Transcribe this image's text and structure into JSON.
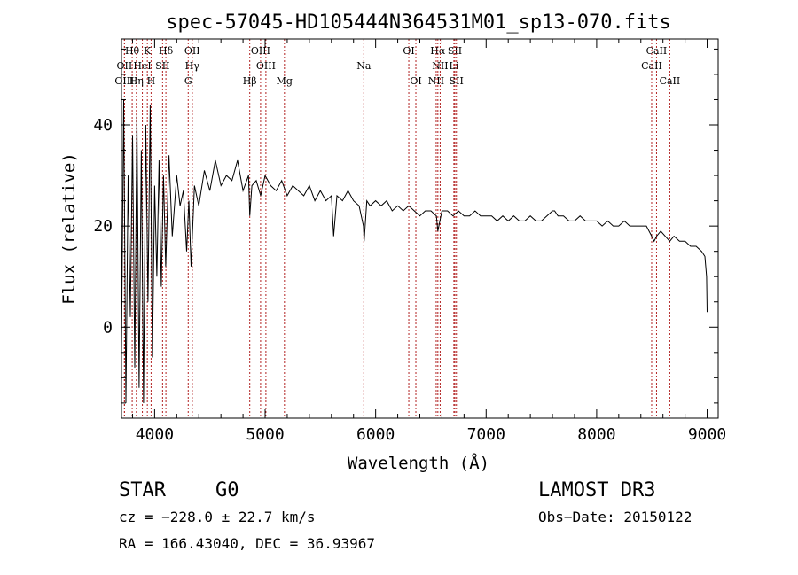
{
  "chart_data": {
    "type": "line",
    "title": "spec-57045-HD105444N364531M01_sp13-070.fits",
    "xlabel": "Wavelength (Å)",
    "ylabel": "Flux (relative)",
    "xlim": [
      3700,
      9100
    ],
    "ylim": [
      -18,
      57
    ],
    "x_ticks": [
      4000,
      5000,
      6000,
      7000,
      8000,
      9000
    ],
    "y_ticks": [
      0,
      20,
      40
    ],
    "grid": false,
    "line_color": "#000000",
    "marker_color": "#b22222",
    "series": [
      {
        "name": "flux",
        "x": [
          3700,
          3720,
          3740,
          3760,
          3780,
          3800,
          3820,
          3840,
          3860,
          3880,
          3900,
          3920,
          3940,
          3960,
          3980,
          4000,
          4020,
          4040,
          4060,
          4080,
          4100,
          4130,
          4160,
          4200,
          4230,
          4260,
          4290,
          4310,
          4330,
          4360,
          4400,
          4450,
          4500,
          4550,
          4600,
          4650,
          4700,
          4750,
          4800,
          4850,
          4861,
          4880,
          4920,
          4960,
          5000,
          5050,
          5100,
          5150,
          5200,
          5250,
          5300,
          5350,
          5400,
          5450,
          5500,
          5550,
          5600,
          5620,
          5650,
          5700,
          5750,
          5800,
          5850,
          5890,
          5896,
          5920,
          5950,
          6000,
          6050,
          6100,
          6150,
          6200,
          6250,
          6300,
          6350,
          6400,
          6450,
          6500,
          6550,
          6563,
          6600,
          6650,
          6700,
          6750,
          6800,
          6850,
          6900,
          6950,
          7000,
          7050,
          7100,
          7150,
          7200,
          7250,
          7300,
          7350,
          7400,
          7450,
          7500,
          7550,
          7600,
          7620,
          7650,
          7700,
          7750,
          7800,
          7850,
          7900,
          7950,
          8000,
          8050,
          8100,
          8150,
          8200,
          8250,
          8300,
          8350,
          8400,
          8450,
          8498,
          8520,
          8542,
          8580,
          8620,
          8662,
          8700,
          8750,
          8800,
          8850,
          8900,
          8950,
          8980,
          8995,
          9000
        ],
        "values": [
          -5,
          45,
          -15,
          30,
          2,
          38,
          -8,
          42,
          -12,
          35,
          -15,
          40,
          5,
          44,
          -6,
          28,
          10,
          33,
          8,
          30,
          12,
          34,
          18,
          30,
          24,
          27,
          15,
          25,
          12,
          28,
          24,
          31,
          27,
          33,
          28,
          30,
          29,
          33,
          27,
          30,
          22,
          28,
          29,
          26,
          30,
          28,
          27,
          29,
          26,
          28,
          27,
          26,
          28,
          25,
          27,
          25,
          26,
          18,
          26,
          25,
          27,
          25,
          24,
          20,
          17,
          25,
          24,
          25,
          24,
          25,
          23,
          24,
          23,
          24,
          23,
          22,
          23,
          23,
          22,
          19,
          23,
          23,
          22,
          23,
          22,
          22,
          23,
          22,
          22,
          22,
          21,
          22,
          21,
          22,
          21,
          21,
          22,
          21,
          21,
          22,
          23,
          23,
          22,
          22,
          21,
          21,
          22,
          21,
          21,
          21,
          20,
          21,
          20,
          20,
          21,
          20,
          20,
          20,
          20,
          18,
          17,
          18,
          19,
          18,
          17,
          18,
          17,
          17,
          16,
          16,
          15,
          14,
          10,
          3
        ],
        "description": "LAMOST optical spectrum of a G0 star, noisy blue end (3700-4300 Å) with deep absorption lines"
      }
    ],
    "lines": [
      {
        "label": "Hθ",
        "x": 3797,
        "row": 1
      },
      {
        "label": "K",
        "x": 3934,
        "row": 1
      },
      {
        "label": "Hδ",
        "x": 4102,
        "row": 1
      },
      {
        "label": "OII",
        "x": 4340,
        "row": 1
      },
      {
        "label": "OIII",
        "x": 4959,
        "row": 1
      },
      {
        "label": "OI",
        "x": 6300,
        "row": 1
      },
      {
        "label": "Hα",
        "x": 6563,
        "row": 1
      },
      {
        "label": "SII",
        "x": 6717,
        "row": 1
      },
      {
        "label": "CaII",
        "x": 8542,
        "row": 1
      },
      {
        "label": "OII",
        "x": 3727,
        "row": 2
      },
      {
        "label": "HeI",
        "x": 3889,
        "row": 2
      },
      {
        "label": "SII",
        "x": 4072,
        "row": 2
      },
      {
        "label": "Hγ",
        "x": 4340,
        "row": 2
      },
      {
        "label": "OIII",
        "x": 5007,
        "row": 2
      },
      {
        "label": "Na",
        "x": 5893,
        "row": 2
      },
      {
        "label": "NII",
        "x": 6584,
        "row": 2
      },
      {
        "label": "Li",
        "x": 6708,
        "row": 2
      },
      {
        "label": "CaII",
        "x": 8498,
        "row": 2
      },
      {
        "label": "OIII",
        "x": 3727,
        "row": 3
      },
      {
        "label": "Hη",
        "x": 3835,
        "row": 3
      },
      {
        "label": "H",
        "x": 3968,
        "row": 3
      },
      {
        "label": "G",
        "x": 4304,
        "row": 3
      },
      {
        "label": "Hβ",
        "x": 4861,
        "row": 3
      },
      {
        "label": "Mg",
        "x": 5175,
        "row": 3
      },
      {
        "label": "OI",
        "x": 6364,
        "row": 3
      },
      {
        "label": "NII",
        "x": 6548,
        "row": 3
      },
      {
        "label": "SII",
        "x": 6731,
        "row": 3
      },
      {
        "label": "CaII",
        "x": 8662,
        "row": 3
      }
    ]
  },
  "info": {
    "object_type": "STAR",
    "subclass": "G0",
    "survey": "LAMOST DR3",
    "cz": "cz = −228.0 ± 22.7 km/s",
    "obs_date": "Obs−Date: 20150122",
    "coords": "RA = 166.43040, DEC =  36.93967"
  }
}
